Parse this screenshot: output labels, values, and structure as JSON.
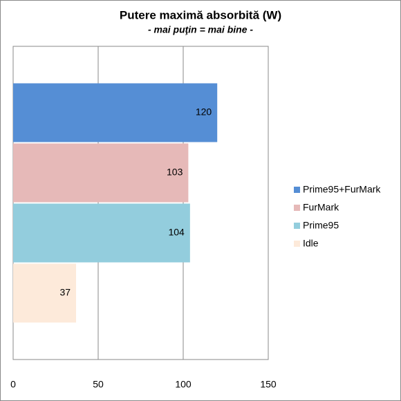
{
  "chart_data": {
    "type": "bar",
    "orientation": "horizontal",
    "title": "Putere maximă absorbită (W)",
    "subtitle": "- mai puţin = mai bine -",
    "categories": [
      null
    ],
    "series": [
      {
        "name": "Prime95+FurMark",
        "color": "#558ed5",
        "values": [
          120
        ]
      },
      {
        "name": "FurMark",
        "color": "#e6b9b8",
        "values": [
          103
        ]
      },
      {
        "name": "Prime95",
        "color": "#93cddd",
        "values": [
          104
        ]
      },
      {
        "name": "Idle",
        "color": "#fdeada",
        "values": [
          37
        ]
      }
    ],
    "xlim": [
      0,
      150
    ],
    "xticks": [
      0,
      50,
      100,
      150
    ],
    "grid": true,
    "legend": "right"
  }
}
